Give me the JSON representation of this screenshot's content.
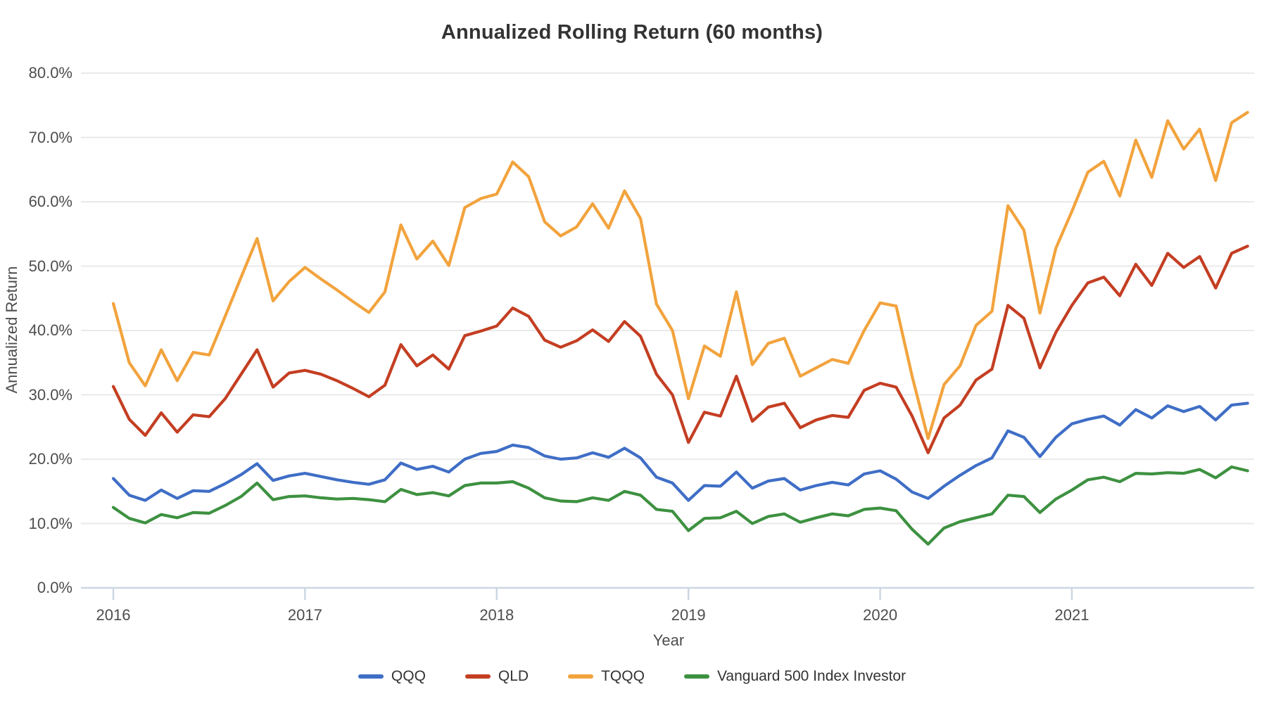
{
  "page_title": "Annualized Rolling Return (60 months)",
  "y_axis": {
    "title": "Annualized Return",
    "tick_labels": [
      "0.0%",
      "10.0%",
      "20.0%",
      "30.0%",
      "40.0%",
      "50.0%",
      "60.0%",
      "70.0%",
      "80.0%"
    ]
  },
  "x_axis": {
    "title": "Year",
    "tick_labels": [
      "2016",
      "2017",
      "2018",
      "2019",
      "2020",
      "2021"
    ]
  },
  "legend": {
    "position": "bottom",
    "items": [
      {
        "label": "QQQ",
        "color": "#3f6ec6"
      },
      {
        "label": "QLD",
        "color": "#c43e22"
      },
      {
        "label": "TQQQ",
        "color": "#f2a33d"
      },
      {
        "label": "Vanguard 500 Index Investor",
        "color": "#3d9140"
      }
    ]
  },
  "chart_data": {
    "type": "line",
    "title": "Annualized Rolling Return (60 months)",
    "xlabel": "Year",
    "ylabel": "Annualized Return",
    "ylim": [
      0,
      80
    ],
    "y_tick_step": 10,
    "grid": true,
    "legend_position": "bottom",
    "x_frequency": "monthly",
    "x_start": "2016-01",
    "x_end": "2021-12",
    "x_tick_years": [
      2016,
      2017,
      2018,
      2019,
      2020,
      2021
    ],
    "series": [
      {
        "name": "QQQ",
        "color": "#3f6ec6",
        "values": [
          17.0,
          14.4,
          13.6,
          15.2,
          13.9,
          15.1,
          15.0,
          16.2,
          17.6,
          19.3,
          16.7,
          17.4,
          17.8,
          17.3,
          16.8,
          16.4,
          16.1,
          16.8,
          19.4,
          18.4,
          18.9,
          18.0,
          20.0,
          20.9,
          21.2,
          22.2,
          21.8,
          20.5,
          20.0,
          20.2,
          21.0,
          20.3,
          21.7,
          20.2,
          17.2,
          16.3,
          13.6,
          15.9,
          15.8,
          18.0,
          15.5,
          16.6,
          17.0,
          15.2,
          15.9,
          16.4,
          16.0,
          17.7,
          18.2,
          16.9,
          14.9,
          13.9,
          15.8,
          17.5,
          19.0,
          20.2,
          24.4,
          23.4,
          20.4,
          23.4,
          25.5,
          26.2,
          26.7,
          25.3,
          27.7,
          26.4,
          28.3,
          27.4,
          28.2,
          26.1,
          28.4,
          28.7
        ]
      },
      {
        "name": "QLD",
        "color": "#c43e22",
        "values": [
          31.3,
          26.2,
          23.7,
          27.2,
          24.2,
          26.9,
          26.6,
          29.4,
          33.2,
          37.0,
          31.2,
          33.4,
          33.8,
          33.2,
          32.2,
          31.0,
          29.7,
          31.5,
          37.8,
          34.5,
          36.2,
          34.0,
          39.2,
          39.9,
          40.7,
          43.5,
          42.2,
          38.5,
          37.4,
          38.4,
          40.1,
          38.3,
          41.4,
          39.1,
          33.2,
          30.0,
          22.6,
          27.3,
          26.7,
          32.9,
          25.9,
          28.1,
          28.7,
          24.9,
          26.1,
          26.8,
          26.5,
          30.7,
          31.8,
          31.2,
          26.7,
          21.0,
          26.4,
          28.4,
          32.3,
          34.0,
          43.9,
          41.9,
          34.2,
          39.7,
          43.9,
          47.4,
          48.3,
          45.4,
          50.3,
          47.0,
          52.0,
          49.8,
          51.5,
          46.6,
          52.0,
          53.1
        ]
      },
      {
        "name": "TQQQ",
        "color": "#f2a33d",
        "values": [
          44.2,
          35.0,
          31.4,
          37.0,
          32.2,
          36.6,
          36.2,
          42.2,
          48.3,
          54.3,
          44.6,
          47.6,
          49.8,
          48.0,
          46.3,
          44.5,
          42.8,
          46.0,
          56.4,
          51.1,
          53.9,
          50.1,
          59.1,
          60.5,
          61.2,
          66.2,
          63.9,
          56.9,
          54.7,
          56.1,
          59.7,
          55.9,
          61.7,
          57.4,
          44.1,
          40.0,
          29.4,
          37.6,
          36.0,
          46.0,
          34.7,
          38.0,
          38.8,
          32.9,
          34.2,
          35.5,
          34.9,
          40.0,
          44.3,
          43.8,
          32.9,
          23.2,
          31.6,
          34.5,
          40.8,
          43.0,
          59.4,
          55.6,
          42.7,
          52.8,
          58.5,
          64.6,
          66.3,
          60.9,
          69.6,
          63.8,
          72.6,
          68.2,
          71.3,
          63.3,
          72.3,
          73.9
        ]
      },
      {
        "name": "Vanguard 500 Index Investor",
        "color": "#3d9140",
        "values": [
          12.5,
          10.8,
          10.1,
          11.4,
          10.9,
          11.7,
          11.6,
          12.8,
          14.2,
          16.3,
          13.7,
          14.2,
          14.3,
          14.0,
          13.8,
          13.9,
          13.7,
          13.4,
          15.3,
          14.5,
          14.8,
          14.3,
          15.9,
          16.3,
          16.3,
          16.5,
          15.5,
          14.0,
          13.5,
          13.4,
          14.0,
          13.6,
          15.0,
          14.4,
          12.2,
          11.9,
          8.9,
          10.8,
          10.9,
          11.9,
          10.0,
          11.1,
          11.5,
          10.2,
          10.9,
          11.5,
          11.2,
          12.2,
          12.4,
          12.0,
          9.1,
          6.8,
          9.3,
          10.3,
          10.9,
          11.5,
          14.4,
          14.2,
          11.7,
          13.8,
          15.2,
          16.8,
          17.2,
          16.5,
          17.8,
          17.7,
          17.9,
          17.8,
          18.4,
          17.1,
          18.8,
          18.2
        ]
      }
    ]
  },
  "plot_geometry_note": "y-axis gridlines every 10% from 0% (bottom) to 80% (top); legend centered below x-axis title"
}
